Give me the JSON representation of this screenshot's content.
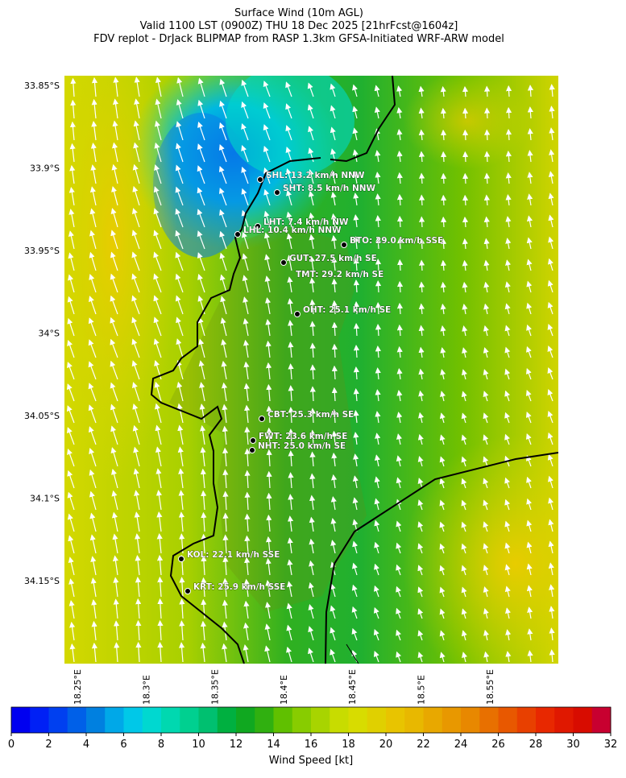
{
  "title": [
    "Surface Wind (10m AGL)",
    "Valid 1100 LST (0900Z) THU 18 Dec 2025 [21hrFcst@1604z]",
    "FDV replot - DrJack BLIPMAP from RASP 1.3km GFSA-Initiated WRF-ARW model"
  ],
  "map": {
    "lat_labels": [
      "33.85°S",
      "33.9°S",
      "33.95°S",
      "34°S",
      "34.05°S",
      "34.1°S",
      "34.15°S"
    ],
    "lon_labels": [
      "18.25°E",
      "18.3°E",
      "18.35°E",
      "18.4°E",
      "18.45°E",
      "18.5°E",
      "18.55°E"
    ],
    "stations": [
      "SHL: 13.2 km/h NNW",
      "SHT: 8.5 km/h NNW",
      "LHT: 7.4 km/h NW",
      "LHL: 10.4 km/h NNW",
      "BTO: 29.0 km/h SSE",
      "GUT: 27.5 km/h SE",
      "TMT: 29.2 km/h SE",
      "OHT: 25.1 km/h SE",
      "CBT: 25.3 km/h SE",
      "FWT: 23.6 km/h SE",
      "NHT: 25.0 km/h SE",
      "KOL: 22.1 km/h SSE",
      "KRT: 25.9 km/h SSE"
    ]
  },
  "colorbar": {
    "label": "Wind Speed [kt]",
    "lim": [
      0,
      32
    ],
    "ticks": [
      0,
      2,
      4,
      6,
      8,
      10,
      12,
      14,
      16,
      18,
      20,
      22,
      24,
      26,
      28,
      30,
      32
    ],
    "colors": [
      "#0000f0",
      "#0020f5",
      "#0040f0",
      "#0060e8",
      "#0080e0",
      "#00a8e8",
      "#00c8e8",
      "#00d8d0",
      "#00d8b0",
      "#00d090",
      "#00c070",
      "#00b040",
      "#10a820",
      "#30b010",
      "#60c000",
      "#88cc00",
      "#a8d400",
      "#c8dc00",
      "#d8dc00",
      "#e0d000",
      "#e8c400",
      "#e8b800",
      "#e8a800",
      "#e89800",
      "#e88800",
      "#e87000",
      "#e85800",
      "#e84000",
      "#e82800",
      "#e01800",
      "#d80c00",
      "#c80030"
    ]
  }
}
